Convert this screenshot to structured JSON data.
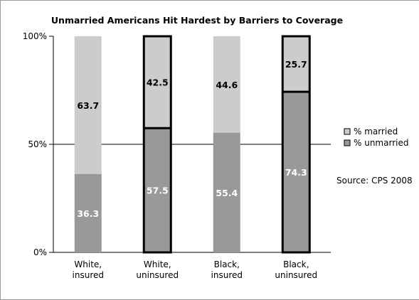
{
  "chart_data": {
    "type": "bar",
    "stacked": true,
    "title": "Unmarried Americans Hit Hardest by Barriers to Coverage",
    "categories": [
      [
        "White,",
        "insured"
      ],
      [
        "White,",
        "uninsured"
      ],
      [
        "Black,",
        "insured"
      ],
      [
        "Black,",
        "uninsured"
      ]
    ],
    "series": [
      {
        "name": "% unmarried",
        "values": [
          36.3,
          57.5,
          55.4,
          74.3
        ],
        "color": "#999999"
      },
      {
        "name": "% married",
        "values": [
          63.7,
          42.5,
          44.6,
          25.7
        ],
        "color": "#cccccc"
      }
    ],
    "outlined_bars": [
      false,
      true,
      false,
      true
    ],
    "y_ticks": [
      "0%",
      "50%",
      "100%"
    ],
    "ylim": [
      0,
      100
    ],
    "grid": "50% line only",
    "legend": "right",
    "label_color": "#ffffff",
    "upper_label_color": "#000000",
    "source": "Source: CPS 2008"
  }
}
